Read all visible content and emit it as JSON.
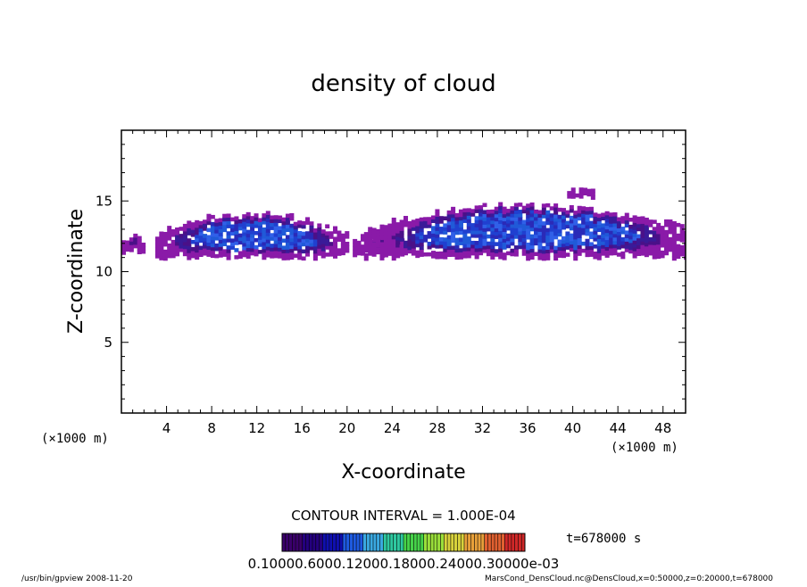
{
  "chart_data": {
    "type": "heatmap",
    "title": "density of cloud",
    "xlabel": "X-coordinate",
    "ylabel": "Z-coordinate",
    "x_unit": "(×1000 m)",
    "z_unit": "(×1000 m)",
    "xlim": [
      0,
      50
    ],
    "ylim": [
      0,
      20
    ],
    "x_ticks": [
      "4",
      "8",
      "12",
      "16",
      "20",
      "24",
      "28",
      "32",
      "36",
      "40",
      "44",
      "48"
    ],
    "y_ticks": [
      "5",
      "10",
      "15"
    ],
    "contour_interval_text": "CONTOUR INTERVAL = 1.000E-04",
    "time_text": "t=678000  s",
    "colorbar_labels_text": "0.10000.6000.12000.18000.24000.30000e-03",
    "colorbar_colors": [
      "#3a006b",
      "#24007f",
      "#0f0fb0",
      "#1e5ae0",
      "#3aa8e0",
      "#2ec8a0",
      "#46d24a",
      "#9ade3a",
      "#d8d23c",
      "#e8a03a",
      "#e06030",
      "#d02828"
    ],
    "cloud_layer": {
      "base_km": 11.0,
      "top_km": 14.6,
      "segments": [
        {
          "x0": 0.0,
          "x1": 1.8,
          "z0": 11.3,
          "z1": 12.5,
          "peak": 0.3
        },
        {
          "x0": 3.0,
          "x1": 20.0,
          "z0": 11.0,
          "z1": 14.0,
          "peak": 0.9
        },
        {
          "x0": 20.5,
          "x1": 25.0,
          "z0": 11.2,
          "z1": 12.6,
          "peak": 0.3
        },
        {
          "x0": 21.5,
          "x1": 50.0,
          "z0": 11.0,
          "z1": 14.6,
          "peak": 1.0
        },
        {
          "x0": 39.5,
          "x1": 42.0,
          "z0": 15.3,
          "z1": 15.7,
          "peak": 0.2
        }
      ]
    }
  },
  "footer": {
    "left": "/usr/bin/gpview   2008-11-20",
    "right": "MarsCond_DensCloud.nc@DensCloud,x=0:50000,z=0:20000,t=678000"
  }
}
